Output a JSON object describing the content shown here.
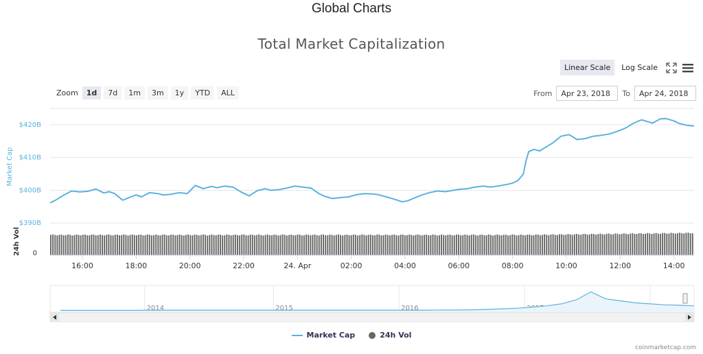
{
  "page": {
    "title": "Global Charts",
    "credit": "coinmarketcap.com"
  },
  "chart_data": {
    "type": "line",
    "title": "Total Market Capitalization",
    "ylabel": "Market Cap",
    "ylabel2": "24h Vol",
    "yticks": [
      "$390B",
      "$400B",
      "$410B",
      "$420B"
    ],
    "ytick_values": [
      390,
      400,
      410,
      420
    ],
    "ylim": [
      389,
      425
    ],
    "vol_tick": "0",
    "xlim": [
      14.8,
      38.75
    ],
    "xticks": [
      {
        "label": "16:00",
        "value": 16
      },
      {
        "label": "18:00",
        "value": 18
      },
      {
        "label": "20:00",
        "value": 20
      },
      {
        "label": "22:00",
        "value": 22
      },
      {
        "label": "24. Apr",
        "value": 24
      },
      {
        "label": "02:00",
        "value": 26
      },
      {
        "label": "04:00",
        "value": 28
      },
      {
        "label": "06:00",
        "value": 30
      },
      {
        "label": "08:00",
        "value": 32
      },
      {
        "label": "10:00",
        "value": 34
      },
      {
        "label": "12:00",
        "value": 36
      },
      {
        "label": "14:00",
        "value": 38
      }
    ],
    "grid": true,
    "series": [
      {
        "name": "Market Cap",
        "color": "#5ab1e0",
        "x": [
          14.8,
          15.0,
          15.3,
          15.6,
          15.9,
          16.2,
          16.5,
          16.8,
          17.0,
          17.2,
          17.5,
          17.8,
          18.0,
          18.2,
          18.5,
          18.8,
          19.0,
          19.3,
          19.6,
          19.9,
          20.2,
          20.5,
          20.8,
          21.0,
          21.3,
          21.6,
          21.9,
          22.2,
          22.5,
          22.8,
          23.0,
          23.3,
          23.6,
          23.9,
          24.2,
          24.5,
          24.8,
          25.0,
          25.3,
          25.6,
          25.9,
          26.2,
          26.5,
          26.8,
          27.0,
          27.3,
          27.6,
          27.9,
          28.1,
          28.3,
          28.6,
          28.9,
          29.2,
          29.5,
          29.8,
          30.0,
          30.3,
          30.6,
          30.9,
          31.2,
          31.5,
          31.8,
          32.0,
          32.2,
          32.4,
          32.5,
          32.6,
          32.8,
          33.0,
          33.2,
          33.5,
          33.8,
          34.1,
          34.4,
          34.7,
          35.0,
          35.3,
          35.6,
          35.9,
          36.2,
          36.5,
          36.8,
          37.0,
          37.2,
          37.5,
          37.7,
          38.0,
          38.2,
          38.5,
          38.75
        ],
        "values": [
          396.2,
          397.0,
          398.5,
          399.8,
          399.5,
          399.7,
          400.4,
          399.2,
          399.6,
          399.0,
          397.0,
          398.0,
          398.6,
          398.0,
          399.3,
          399.0,
          398.6,
          398.8,
          399.3,
          399.0,
          401.5,
          400.5,
          401.2,
          400.8,
          401.3,
          401.0,
          399.5,
          398.3,
          399.9,
          400.5,
          400.0,
          400.2,
          400.7,
          401.3,
          401.0,
          400.7,
          399.0,
          398.2,
          397.5,
          397.8,
          398.0,
          398.7,
          399.0,
          398.9,
          398.7,
          398.0,
          397.3,
          396.5,
          396.8,
          397.5,
          398.5,
          399.3,
          399.8,
          399.6,
          400.0,
          400.3,
          400.5,
          401.0,
          401.3,
          401.0,
          401.4,
          401.8,
          402.2,
          403.0,
          405.0,
          409.0,
          411.8,
          412.5,
          412.0,
          413.0,
          414.5,
          416.5,
          417.0,
          415.5,
          415.8,
          416.5,
          416.8,
          417.2,
          418.0,
          419.0,
          420.5,
          421.5,
          421.0,
          420.5,
          421.8,
          421.9,
          421.2,
          420.4,
          419.8,
          419.6
        ]
      },
      {
        "name": "24h Vol",
        "color": "#666666",
        "relative_start": 0.82,
        "relative_end": 0.9
      }
    ],
    "navigator": {
      "years": [
        "2014",
        "2015",
        "2016",
        "2017",
        "2018"
      ],
      "values": [
        0.02,
        0.02,
        0.02,
        0.02,
        0.02,
        0.02,
        0.03,
        0.03,
        0.03,
        0.03,
        0.03,
        0.03,
        0.03,
        0.03,
        0.03,
        0.03,
        0.03,
        0.03,
        0.03,
        0.03,
        0.03,
        0.03,
        0.03,
        0.03,
        0.03,
        0.03,
        0.04,
        0.04,
        0.05,
        0.07,
        0.1,
        0.13,
        0.18,
        0.25,
        0.35,
        0.55,
        0.95,
        0.6,
        0.5,
        0.4,
        0.35,
        0.3,
        0.28,
        0.25
      ]
    }
  },
  "controls": {
    "zoom_label": "Zoom",
    "zoom_buttons": [
      "1d",
      "7d",
      "1m",
      "3m",
      "1y",
      "YTD",
      "ALL"
    ],
    "scale_linear": "Linear Scale",
    "scale_log": "Log Scale",
    "from_label": "From",
    "to_label": "To",
    "from_value": "Apr 23, 2018",
    "to_value": "Apr 24, 2018",
    "icons": [
      "fullscreen-icon",
      "menu-icon"
    ]
  },
  "legend": {
    "market_cap": "Market Cap",
    "vol": "24h Vol"
  }
}
